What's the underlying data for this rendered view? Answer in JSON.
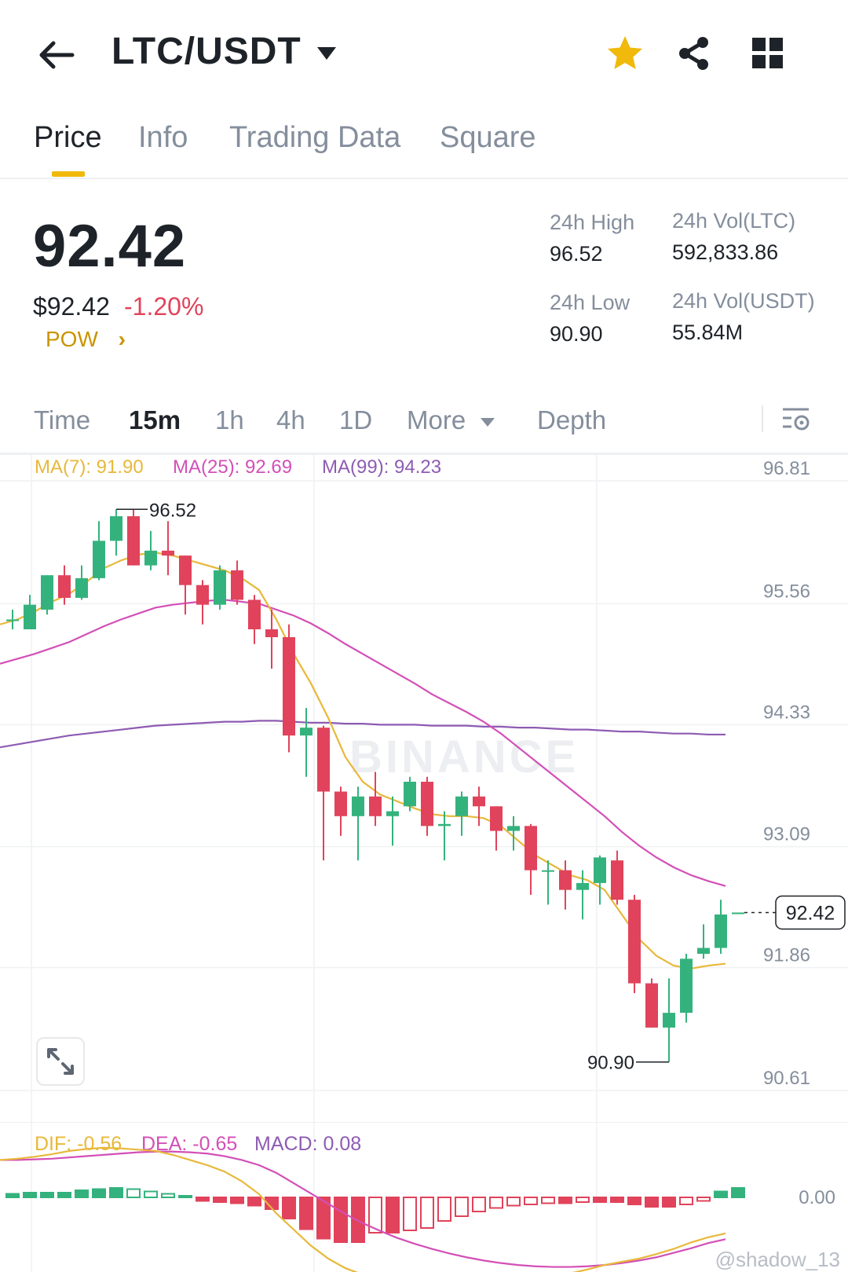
{
  "header": {
    "pair": "LTC/USDT",
    "icons": [
      "back-arrow-icon",
      "caret-down-icon",
      "star-icon",
      "share-icon",
      "grid-icon"
    ],
    "colors": {
      "star": "#f0b90b"
    }
  },
  "tabs": [
    {
      "label": "Price",
      "active": true
    },
    {
      "label": "Info",
      "active": false
    },
    {
      "label": "Trading Data",
      "active": false
    },
    {
      "label": "Square",
      "active": false
    }
  ],
  "ticker": {
    "price": "92.42",
    "usd_price": "$92.42",
    "change": "-1.20%",
    "tag": "POW",
    "high_label": "24h High",
    "high": "96.52",
    "low_label": "24h Low",
    "low": "90.90",
    "vol_base_label": "24h Vol(LTC)",
    "vol_base": "592,833.86",
    "vol_quote_label": "24h Vol(USDT)",
    "vol_quote": "55.84M"
  },
  "intervals": {
    "items": [
      {
        "label": "Time",
        "active": false
      },
      {
        "label": "15m",
        "active": true
      },
      {
        "label": "1h",
        "active": false
      },
      {
        "label": "4h",
        "active": false
      },
      {
        "label": "1D",
        "active": false
      },
      {
        "label": "More",
        "active": false
      },
      {
        "label": "Depth",
        "active": false
      }
    ]
  },
  "chart_data": {
    "type": "candlestick",
    "watermark": "BINANCE",
    "y_ticks": [
      96.81,
      95.56,
      94.33,
      93.09,
      91.86,
      90.61
    ],
    "y_tick_labels": [
      "96.81",
      "95.56",
      "94.33",
      "93.09",
      "91.86",
      "90.61"
    ],
    "ylim": [
      90.61,
      96.81
    ],
    "indicators": [
      {
        "label": "MA(7): 91.90",
        "color": "#e8b83a"
      },
      {
        "label": "MA(25): 92.69",
        "color": "#d34fb7"
      },
      {
        "label": "MA(99): 94.23",
        "color": "#8e5bb3"
      }
    ],
    "last_price": "92.42",
    "high_marker": "96.52",
    "low_marker": "90.90",
    "candles": [
      {
        "o": 95.4,
        "c": 95.4,
        "h": 95.5,
        "l": 95.3
      },
      {
        "o": 95.3,
        "c": 95.55,
        "h": 95.65,
        "l": 95.3
      },
      {
        "o": 95.5,
        "c": 95.85,
        "h": 95.85,
        "l": 95.45
      },
      {
        "o": 95.85,
        "c": 95.62,
        "h": 95.95,
        "l": 95.55
      },
      {
        "o": 95.62,
        "c": 95.82,
        "h": 95.95,
        "l": 95.6
      },
      {
        "o": 95.82,
        "c": 96.2,
        "h": 96.4,
        "l": 95.8
      },
      {
        "o": 96.2,
        "c": 96.45,
        "h": 96.52,
        "l": 96.05
      },
      {
        "o": 96.45,
        "c": 95.95,
        "h": 96.52,
        "l": 95.95
      },
      {
        "o": 95.95,
        "c": 96.1,
        "h": 96.3,
        "l": 95.9
      },
      {
        "o": 96.1,
        "c": 96.05,
        "h": 96.4,
        "l": 95.85
      },
      {
        "o": 96.05,
        "c": 95.75,
        "h": 96.05,
        "l": 95.45
      },
      {
        "o": 95.75,
        "c": 95.55,
        "h": 95.8,
        "l": 95.35
      },
      {
        "o": 95.55,
        "c": 95.9,
        "h": 95.95,
        "l": 95.5
      },
      {
        "o": 95.9,
        "c": 95.6,
        "h": 96.0,
        "l": 95.55
      },
      {
        "o": 95.6,
        "c": 95.3,
        "h": 95.65,
        "l": 95.15
      },
      {
        "o": 95.3,
        "c": 95.22,
        "h": 95.5,
        "l": 94.9
      },
      {
        "o": 95.22,
        "c": 94.22,
        "h": 95.35,
        "l": 94.05
      },
      {
        "o": 94.22,
        "c": 94.3,
        "h": 94.5,
        "l": 93.8
      },
      {
        "o": 94.3,
        "c": 93.65,
        "h": 94.32,
        "l": 92.95
      },
      {
        "o": 93.65,
        "c": 93.4,
        "h": 93.7,
        "l": 93.2
      },
      {
        "o": 93.4,
        "c": 93.6,
        "h": 93.7,
        "l": 92.95
      },
      {
        "o": 93.6,
        "c": 93.4,
        "h": 93.85,
        "l": 93.3
      },
      {
        "o": 93.4,
        "c": 93.45,
        "h": 93.6,
        "l": 93.1
      },
      {
        "o": 93.5,
        "c": 93.75,
        "h": 93.8,
        "l": 93.45
      },
      {
        "o": 93.75,
        "c": 93.3,
        "h": 93.8,
        "l": 93.2
      },
      {
        "o": 93.3,
        "c": 93.32,
        "h": 93.45,
        "l": 92.95
      },
      {
        "o": 93.4,
        "c": 93.6,
        "h": 93.65,
        "l": 93.2
      },
      {
        "o": 93.6,
        "c": 93.5,
        "h": 93.7,
        "l": 93.3
      },
      {
        "o": 93.5,
        "c": 93.25,
        "h": 93.5,
        "l": 93.05
      },
      {
        "o": 93.25,
        "c": 93.3,
        "h": 93.4,
        "l": 93.05
      },
      {
        "o": 93.3,
        "c": 92.85,
        "h": 93.32,
        "l": 92.6
      },
      {
        "o": 92.85,
        "c": 92.85,
        "h": 92.95,
        "l": 92.5
      },
      {
        "o": 92.85,
        "c": 92.65,
        "h": 92.95,
        "l": 92.45
      },
      {
        "o": 92.65,
        "c": 92.72,
        "h": 92.85,
        "l": 92.35
      },
      {
        "o": 92.72,
        "c": 92.98,
        "h": 93.0,
        "l": 92.5
      },
      {
        "o": 92.95,
        "c": 92.55,
        "h": 93.05,
        "l": 92.5
      },
      {
        "o": 92.55,
        "c": 91.7,
        "h": 92.6,
        "l": 91.6
      },
      {
        "o": 91.7,
        "c": 91.25,
        "h": 91.75,
        "l": 91.25
      },
      {
        "o": 91.25,
        "c": 91.4,
        "h": 91.75,
        "l": 90.9
      },
      {
        "o": 91.4,
        "c": 91.95,
        "h": 92.0,
        "l": 91.3
      },
      {
        "o": 92.0,
        "c": 92.06,
        "h": 92.3,
        "l": 91.95
      },
      {
        "o": 92.06,
        "c": 92.4,
        "h": 92.55,
        "l": 92.0
      },
      {
        "o": 92.42,
        "c": 92.42,
        "h": 92.42,
        "l": 92.42
      }
    ],
    "ma7": [
      95.35,
      95.4,
      95.48,
      95.58,
      95.66,
      95.78,
      95.92,
      96.0,
      96.06,
      96.08,
      96.05,
      96.0,
      95.95,
      95.9,
      95.82,
      95.7,
      95.4,
      95.05,
      94.75,
      94.4,
      94.0,
      93.75,
      93.62,
      93.55,
      93.48,
      93.42,
      93.4,
      93.4,
      93.38,
      93.3,
      93.15,
      93.0,
      92.9,
      92.8,
      92.75,
      92.65,
      92.4,
      92.15,
      91.98,
      91.88,
      91.85,
      91.88,
      91.9
    ],
    "ma25": [
      94.95,
      95.0,
      95.05,
      95.11,
      95.17,
      95.25,
      95.33,
      95.4,
      95.46,
      95.52,
      95.55,
      95.57,
      95.59,
      95.6,
      95.58,
      95.56,
      95.5,
      95.44,
      95.36,
      95.26,
      95.15,
      95.05,
      94.95,
      94.85,
      94.75,
      94.64,
      94.55,
      94.46,
      94.36,
      94.24,
      94.1,
      93.96,
      93.82,
      93.68,
      93.54,
      93.4,
      93.24,
      93.1,
      92.98,
      92.88,
      92.8,
      92.74,
      92.69
    ],
    "ma99": [
      94.1,
      94.13,
      94.16,
      94.19,
      94.22,
      94.24,
      94.26,
      94.28,
      94.3,
      94.32,
      94.33,
      94.34,
      94.35,
      94.36,
      94.36,
      94.37,
      94.37,
      94.36,
      94.35,
      94.35,
      94.34,
      94.34,
      94.33,
      94.33,
      94.33,
      94.32,
      94.32,
      94.32,
      94.31,
      94.31,
      94.3,
      94.3,
      94.29,
      94.28,
      94.28,
      94.27,
      94.26,
      94.26,
      94.25,
      94.24,
      94.24,
      94.23,
      94.23
    ]
  },
  "macd": {
    "dif_label": "DIF: -0.56",
    "dea_label": "DEA: -0.65",
    "macd_label": "MACD: 0.08",
    "zero_label": "0.00",
    "colors": {
      "dif": "#e8b83a",
      "dea": "#d34fb7",
      "macd": "#8e5bb3",
      "up": "#34b27d",
      "down": "#e0435b"
    },
    "hist": [
      0.03,
      0.04,
      0.04,
      0.04,
      0.06,
      0.07,
      0.08,
      0.07,
      0.05,
      0.03,
      0.0,
      -0.03,
      -0.04,
      -0.05,
      -0.07,
      -0.1,
      -0.18,
      -0.27,
      -0.35,
      -0.38,
      -0.38,
      -0.3,
      -0.3,
      -0.28,
      -0.26,
      -0.2,
      -0.16,
      -0.12,
      -0.09,
      -0.07,
      -0.06,
      -0.05,
      -0.05,
      -0.04,
      -0.04,
      -0.04,
      -0.06,
      -0.08,
      -0.08,
      -0.06,
      -0.03,
      0.05,
      0.08
    ],
    "dif": [
      0.58,
      0.6,
      0.63,
      0.67,
      0.72,
      0.75,
      0.77,
      0.76,
      0.74,
      0.72,
      0.66,
      0.58,
      0.5,
      0.4,
      0.25,
      0.05,
      -0.25,
      -0.5,
      -0.75,
      -0.95,
      -1.1,
      -1.2,
      -1.28,
      -1.35,
      -1.4,
      -1.44,
      -1.45,
      -1.45,
      -1.42,
      -1.4,
      -1.36,
      -1.3,
      -1.24,
      -1.18,
      -1.12,
      -1.05,
      -1.0,
      -0.95,
      -0.88,
      -0.8,
      -0.7,
      -0.62,
      -0.56
    ],
    "dea": [
      0.58,
      0.58,
      0.59,
      0.6,
      0.62,
      0.64,
      0.66,
      0.68,
      0.7,
      0.71,
      0.71,
      0.7,
      0.68,
      0.64,
      0.58,
      0.5,
      0.38,
      0.22,
      0.06,
      -0.1,
      -0.26,
      -0.4,
      -0.52,
      -0.63,
      -0.72,
      -0.8,
      -0.87,
      -0.93,
      -0.98,
      -1.02,
      -1.05,
      -1.07,
      -1.08,
      -1.08,
      -1.07,
      -1.05,
      -1.02,
      -0.98,
      -0.93,
      -0.86,
      -0.79,
      -0.71,
      -0.65
    ]
  },
  "footer": {
    "watermark": "@shadow_13"
  }
}
